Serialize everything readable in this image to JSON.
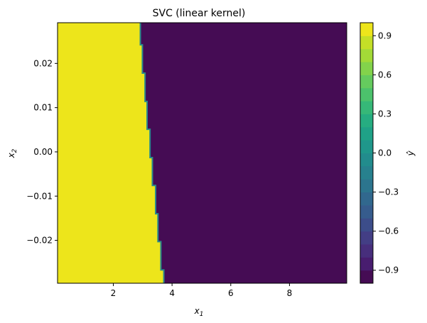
{
  "chart_data": {
    "type": "heatmap",
    "title": "SVC (linear kernel)",
    "xlabel": "x",
    "xlabel_sub": "1",
    "ylabel": "x",
    "ylabel_sub": "2",
    "xlim": [
      0.1,
      9.95
    ],
    "ylim": [
      -0.0297,
      0.0292
    ],
    "x_ticks": [
      2,
      4,
      6,
      8
    ],
    "y_ticks": [
      -0.02,
      -0.01,
      0.0,
      0.01,
      0.02
    ],
    "y_tick_labels": [
      "−0.02",
      "−0.01",
      "0.00",
      "0.01",
      "0.02"
    ],
    "regions": [
      {
        "label": 1,
        "color": "#ede51b",
        "side": "left"
      },
      {
        "label": -1,
        "color": "#450c54",
        "side": "right"
      }
    ],
    "boundary": [
      {
        "y": 0.0292,
        "x": 2.92
      },
      {
        "y": 0.0242,
        "x": 2.92
      },
      {
        "y": 0.0242,
        "x": 2.99
      },
      {
        "y": 0.0178,
        "x": 2.99
      },
      {
        "y": 0.0178,
        "x": 3.08
      },
      {
        "y": 0.0114,
        "x": 3.08
      },
      {
        "y": 0.0114,
        "x": 3.15
      },
      {
        "y": 0.0051,
        "x": 3.15
      },
      {
        "y": 0.0051,
        "x": 3.25
      },
      {
        "y": -0.0013,
        "x": 3.25
      },
      {
        "y": -0.0013,
        "x": 3.33
      },
      {
        "y": -0.0076,
        "x": 3.33
      },
      {
        "y": -0.0076,
        "x": 3.44
      },
      {
        "y": -0.014,
        "x": 3.44
      },
      {
        "y": -0.014,
        "x": 3.52
      },
      {
        "y": -0.0203,
        "x": 3.52
      },
      {
        "y": -0.0203,
        "x": 3.62
      },
      {
        "y": -0.0267,
        "x": 3.62
      },
      {
        "y": -0.0267,
        "x": 3.72
      },
      {
        "y": -0.0297,
        "x": 3.72
      }
    ],
    "colorbar": {
      "label": "ŷ",
      "range": [
        -1.0,
        1.0
      ],
      "levels": [
        -1.0,
        -0.9,
        -0.8,
        -0.7,
        -0.6,
        -0.5,
        -0.4,
        -0.3,
        -0.2,
        -0.1,
        0.0,
        0.1,
        0.2,
        0.3,
        0.4,
        0.5,
        0.6,
        0.7,
        0.8,
        0.9,
        1.0
      ],
      "colors": [
        "#450c54",
        "#481d6f",
        "#472e7c",
        "#433e85",
        "#3c4d8a",
        "#365c8d",
        "#31688e",
        "#2c758e",
        "#27818e",
        "#228c8d",
        "#1f978b",
        "#1fa287",
        "#26ad81",
        "#36b878",
        "#4cc26c",
        "#65cb5e",
        "#83d34b",
        "#a3da37",
        "#c4df27",
        "#ede51b"
      ],
      "ticks": [
        -0.9,
        -0.6,
        -0.3,
        0.0,
        0.3,
        0.6,
        0.9
      ],
      "tick_labels": [
        "−0.9",
        "−0.6",
        "−0.3",
        "0.0",
        "0.3",
        "0.6",
        "0.9"
      ]
    }
  }
}
